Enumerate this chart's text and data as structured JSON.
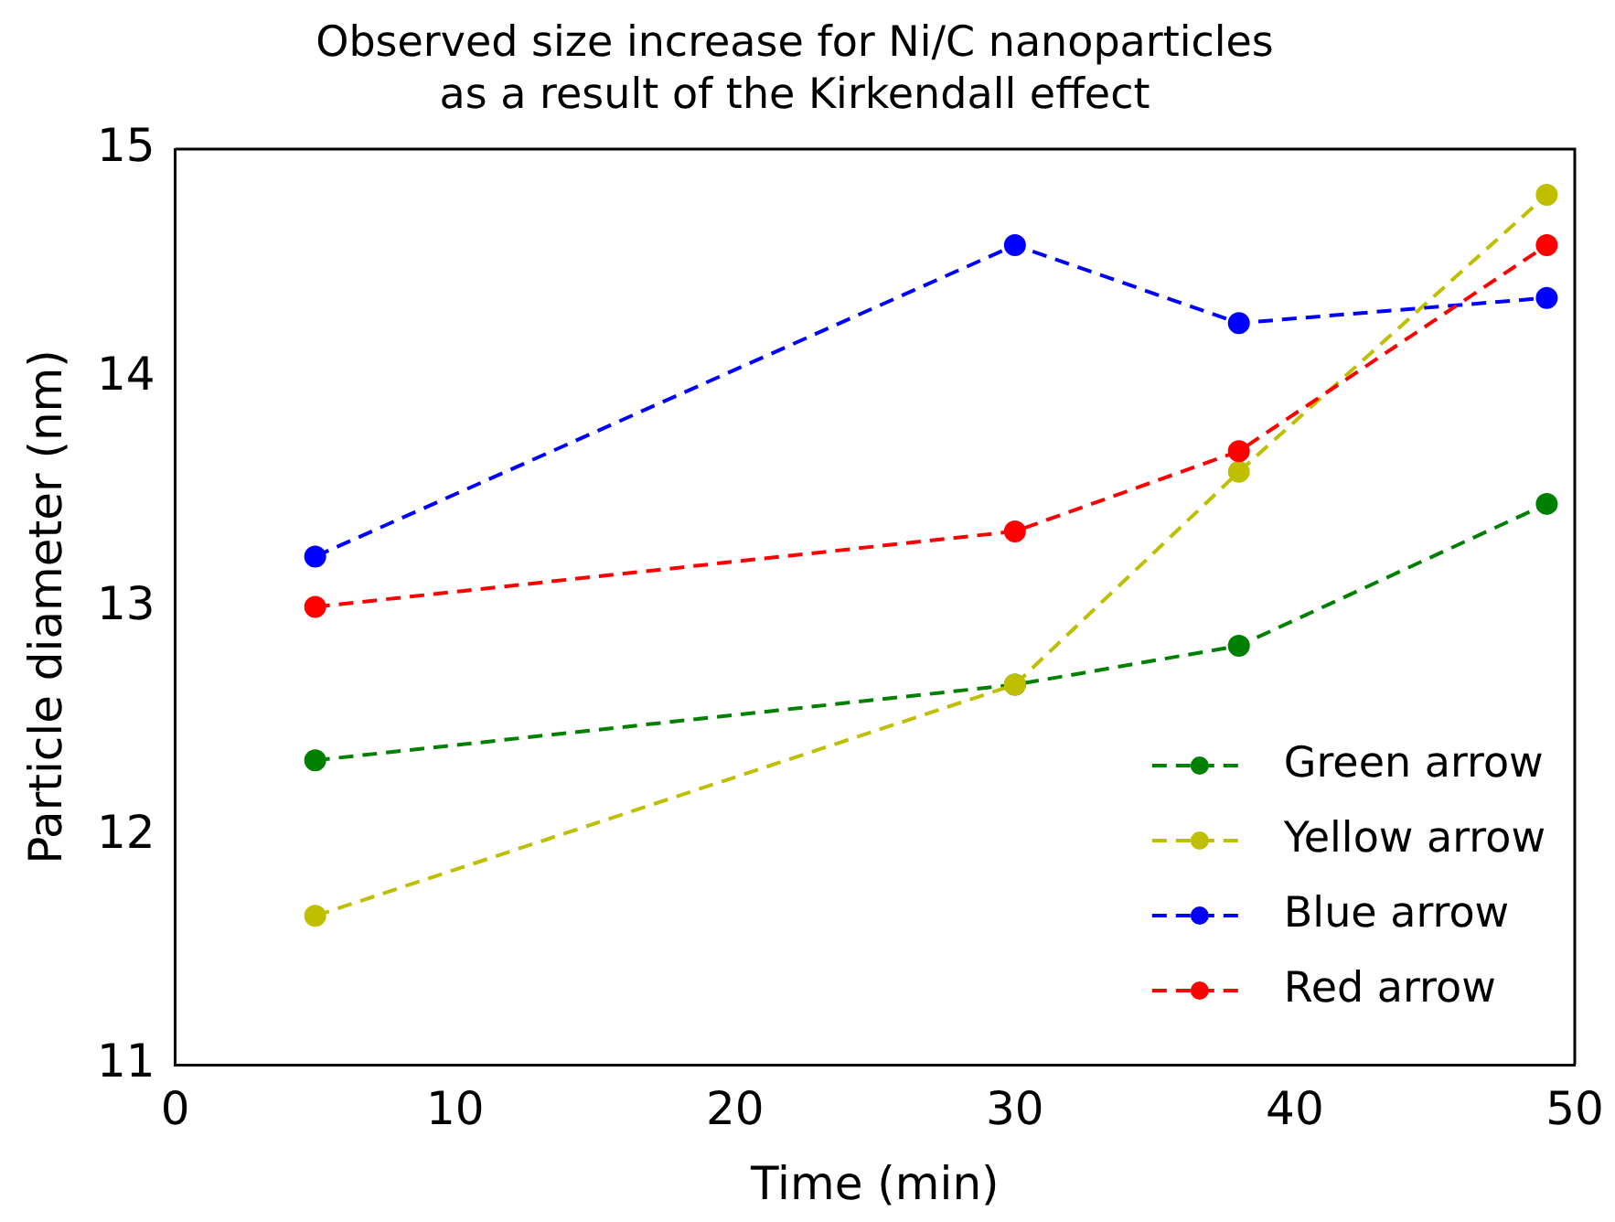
{
  "chart_data": {
    "type": "line",
    "title": "Observed size increase for Ni/C nanoparticles\nas a result of the Kirkendall effect",
    "xlabel": "Time (min)",
    "ylabel": "Particle diameter (nm)",
    "x": [
      5,
      30,
      38,
      49
    ],
    "series": [
      {
        "name": "Green arrow",
        "color": "#008000",
        "values": [
          12.33,
          12.66,
          12.83,
          13.45
        ]
      },
      {
        "name": "Yellow arrow",
        "color": "#bfbf00",
        "values": [
          11.65,
          12.66,
          13.59,
          14.8
        ]
      },
      {
        "name": "Blue arrow",
        "color": "#0000ff",
        "values": [
          13.22,
          14.58,
          14.24,
          14.35
        ]
      },
      {
        "name": "Red arrow",
        "color": "#ff0000",
        "values": [
          13.0,
          13.33,
          13.68,
          14.58
        ]
      }
    ],
    "xlim": [
      0,
      50
    ],
    "xticks": [
      0,
      10,
      20,
      30,
      40,
      50
    ],
    "ylim": [
      11,
      15
    ],
    "yticks": [
      11,
      12,
      13,
      14,
      15
    ],
    "legend": "bottom right",
    "marker": "circle",
    "line_style": "dashed",
    "grid": false
  }
}
